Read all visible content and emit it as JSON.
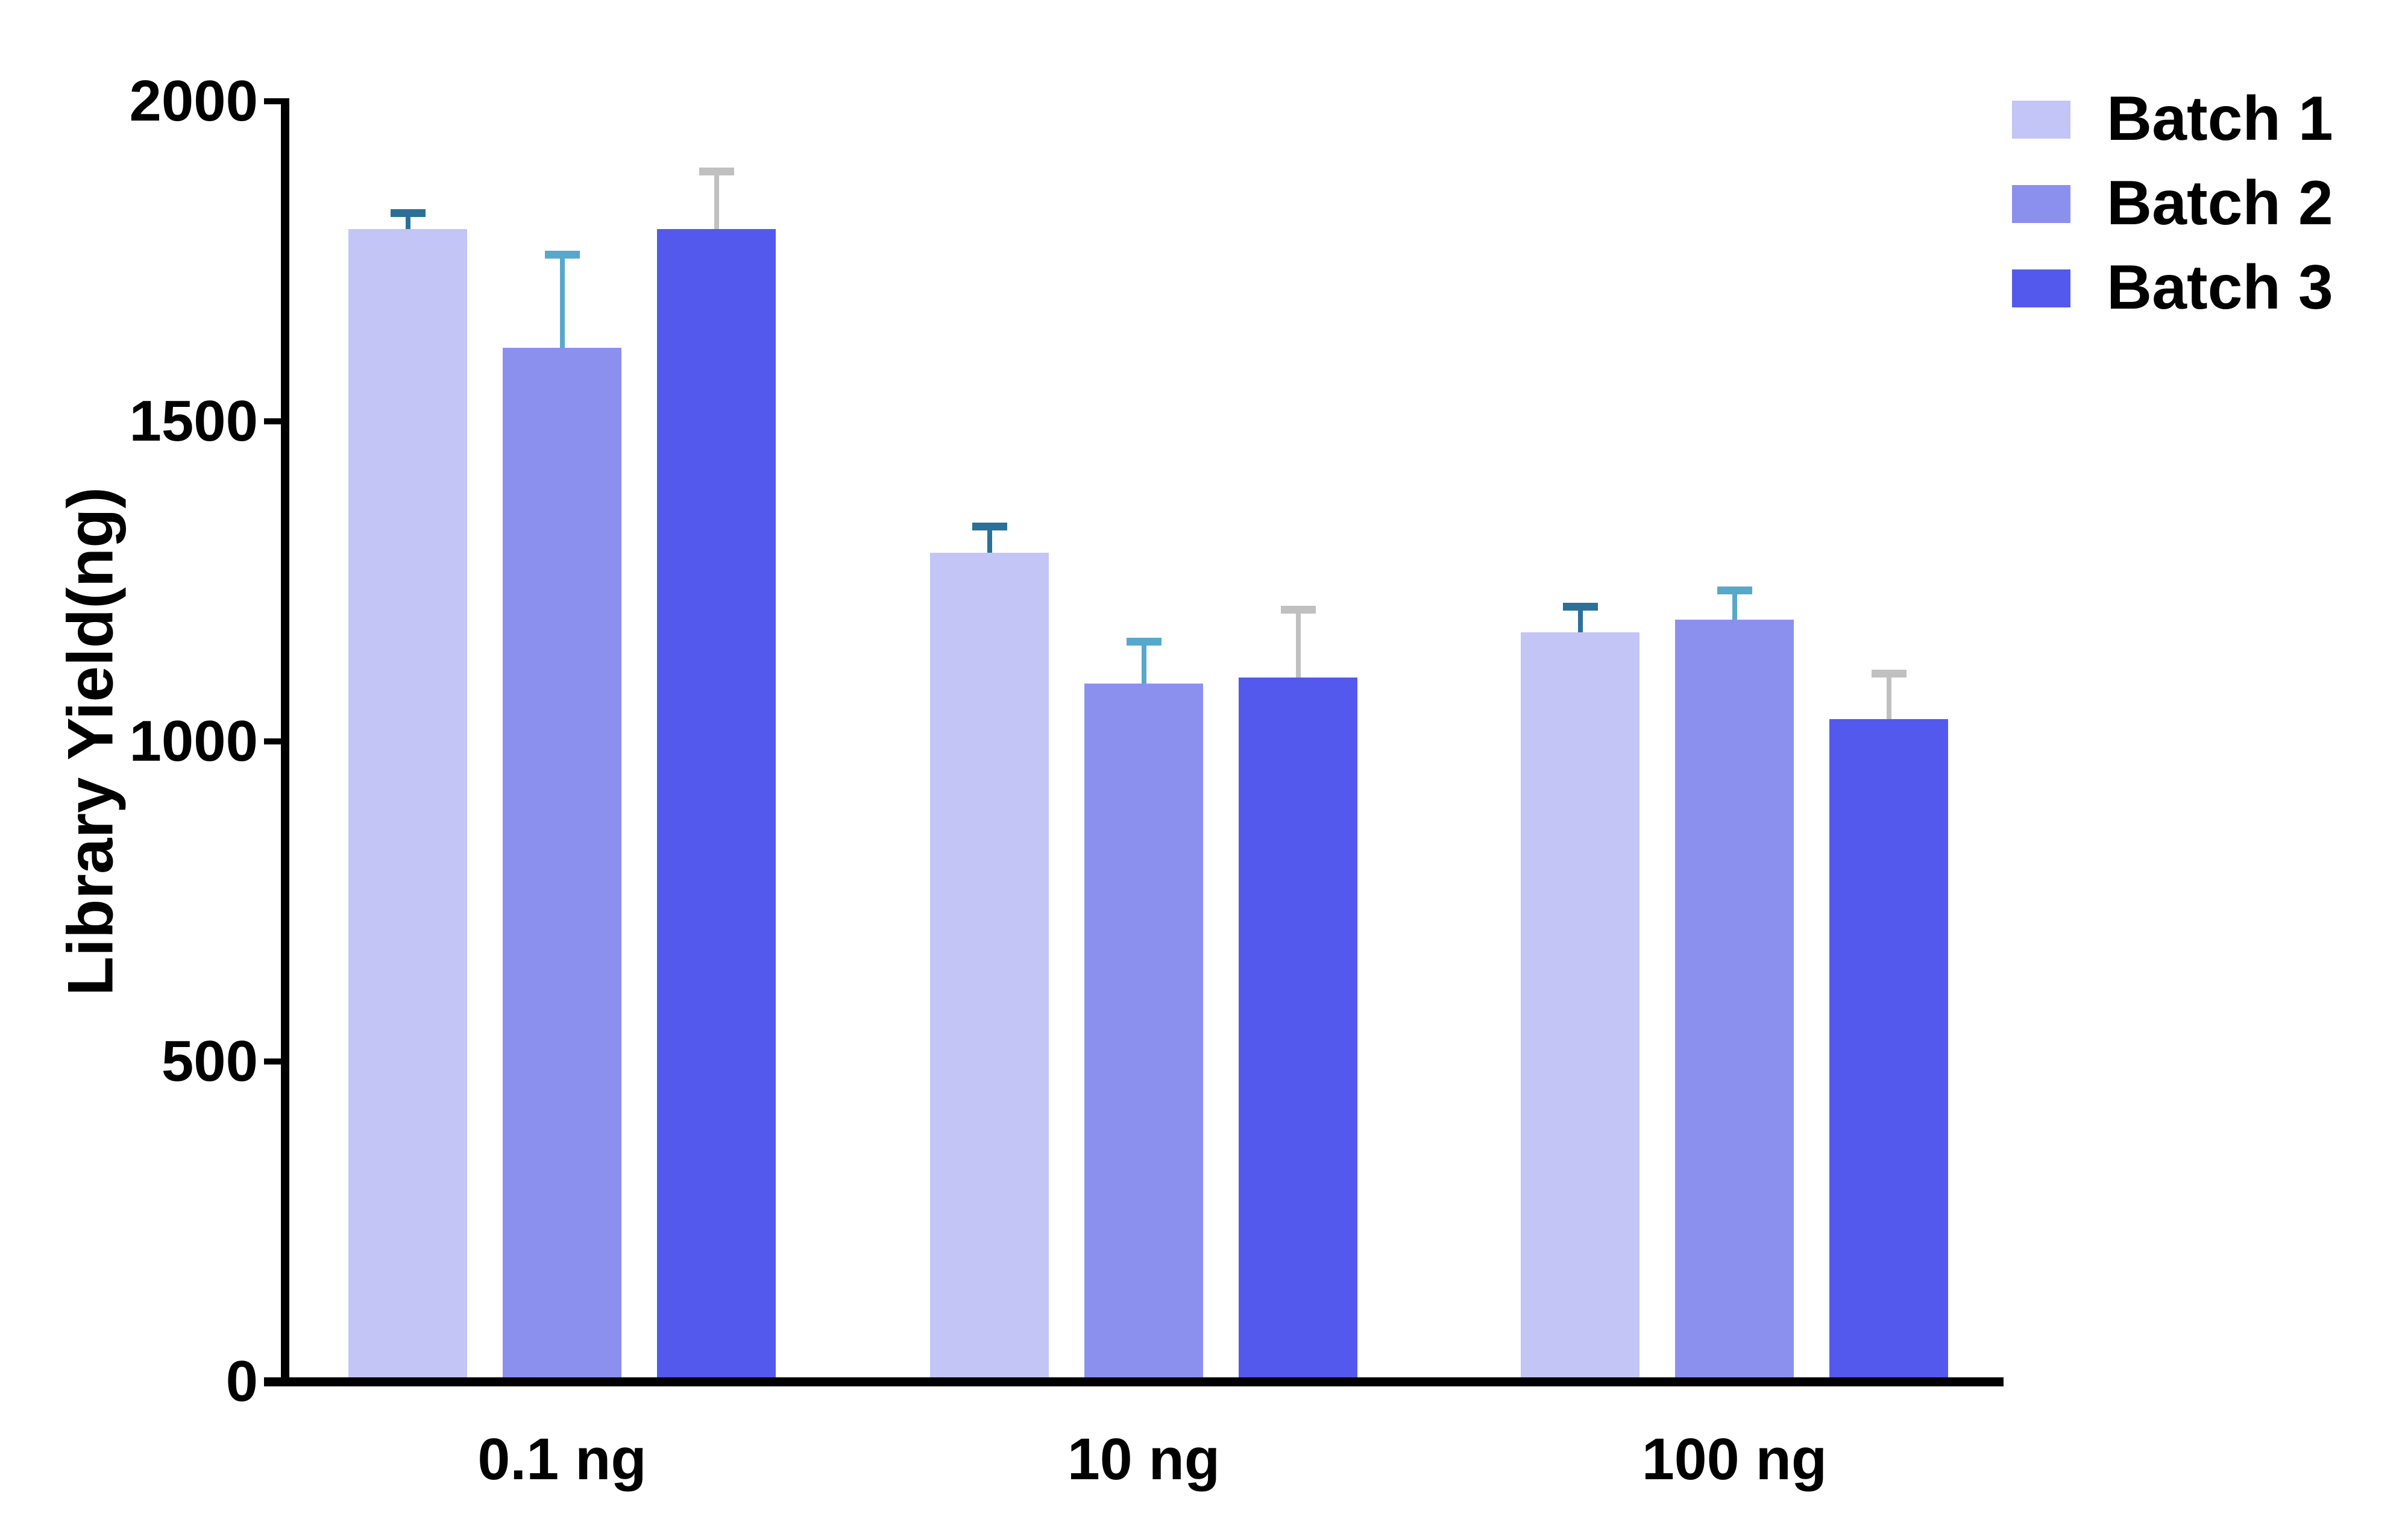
{
  "chart_data": {
    "type": "bar",
    "title": "",
    "xlabel": "",
    "ylabel": "Library Yield(ng)",
    "categories": [
      "0.1 ng",
      "10 ng",
      "100 ng"
    ],
    "series": [
      {
        "name": "Batch 1",
        "values": [
          1800,
          1295,
          1170
        ],
        "errors_upper": [
          25,
          40,
          40
        ],
        "color": "#c3c5f7",
        "error_color": "#2b7099"
      },
      {
        "name": "Batch 2",
        "values": [
          1615,
          1090,
          1190
        ],
        "errors_upper": [
          145,
          65,
          45
        ],
        "color": "#8b90ef",
        "error_color": "#58a8cc"
      },
      {
        "name": "Batch 3",
        "values": [
          1800,
          1100,
          1035
        ],
        "errors_upper": [
          90,
          105,
          70
        ],
        "color": "#5459ee",
        "error_color": "#c0c0c0"
      }
    ],
    "ylim": [
      0,
      2000
    ],
    "yticks": [
      0,
      500,
      1000,
      1500,
      2000
    ],
    "grid": false,
    "error_bars": "upper-only",
    "legend_position": "top-right",
    "axis_color": "#000000",
    "background_color": "#ffffff"
  }
}
